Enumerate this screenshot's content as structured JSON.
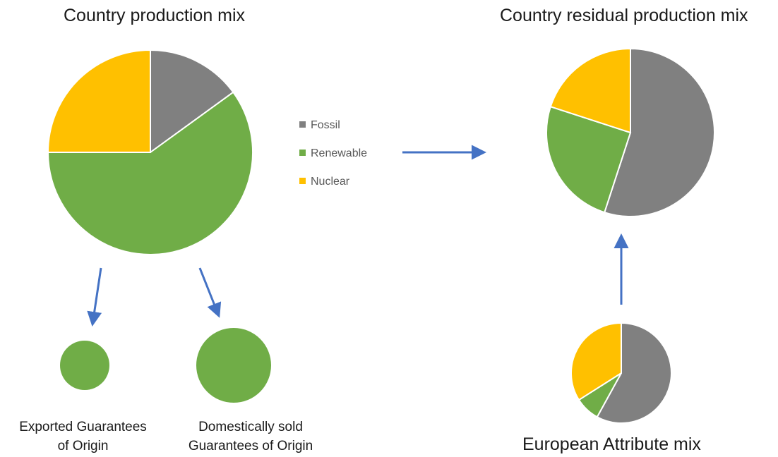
{
  "titles": {
    "production": "Country production mix",
    "residual": "Country residual production mix",
    "european": "European Attribute mix"
  },
  "captions": {
    "exported": [
      "Exported Guarantees",
      "of Origin"
    ],
    "domestic": [
      "Domestically sold",
      "Guarantees of Origin"
    ]
  },
  "legend": [
    {
      "name": "Fossil",
      "color": "#808080"
    },
    {
      "name": "Renewable",
      "color": "#70ad47"
    },
    {
      "name": "Nuclear",
      "color": "#ffc000"
    }
  ],
  "colors": {
    "fossil": "#808080",
    "renewable": "#70ad47",
    "nuclear": "#ffc000",
    "arrow": "#4472c4"
  },
  "pies": {
    "production": {
      "fossil": 15,
      "renewable": 60,
      "nuclear": 25
    },
    "residual": {
      "fossil": 55,
      "renewable": 25,
      "nuclear": 20
    },
    "european": {
      "fossil": 58,
      "renewable": 8,
      "nuclear": 34
    }
  }
}
